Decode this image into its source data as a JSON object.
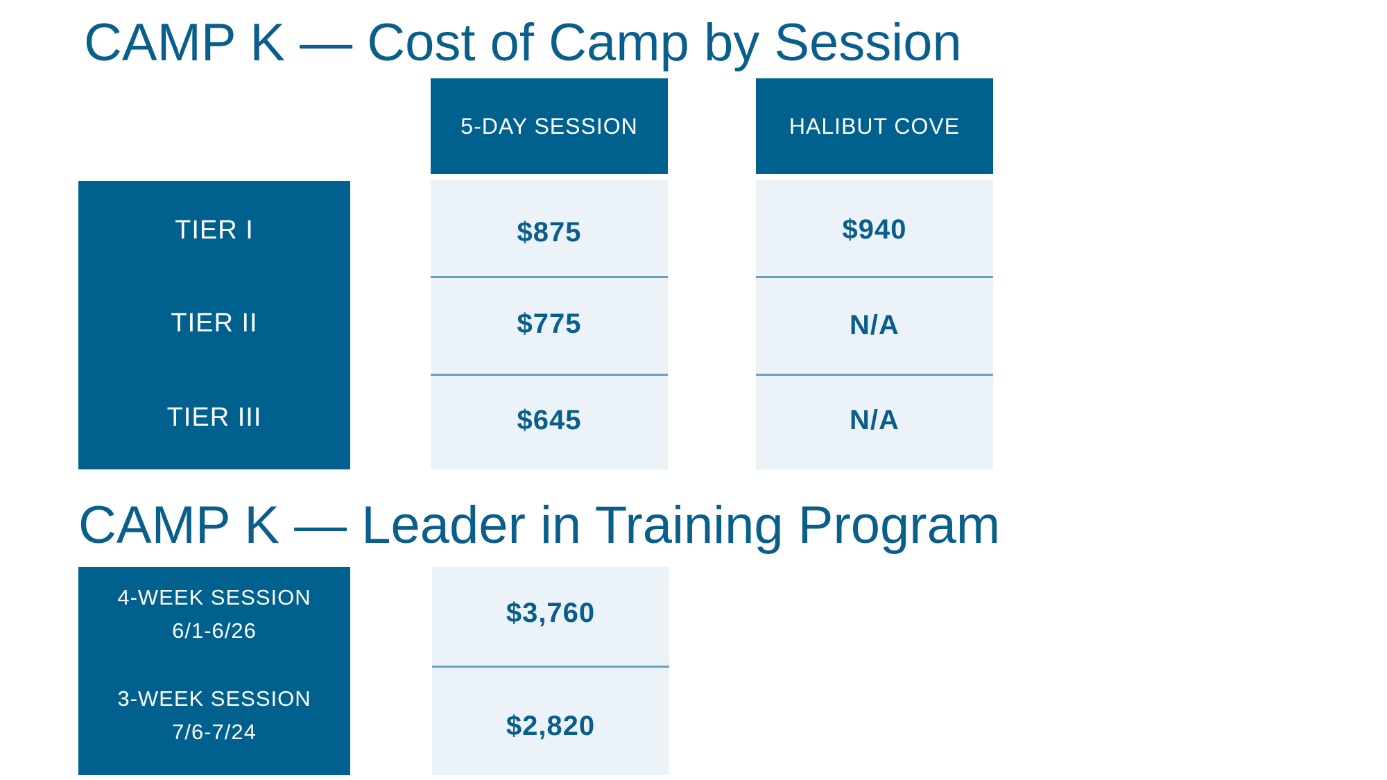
{
  "section_cost": {
    "title": "CAMP K — Cost of Camp by Session",
    "columns": [
      "5-DAY SESSION",
      "HALIBUT COVE"
    ],
    "rows": [
      {
        "label": "TIER I",
        "values": [
          "$875",
          "$940"
        ]
      },
      {
        "label": "TIER II",
        "values": [
          "$775",
          "N/A"
        ]
      },
      {
        "label": "TIER III",
        "values": [
          "$645",
          "N/A"
        ]
      }
    ]
  },
  "section_lit": {
    "title": "CAMP K — Leader in Training Program",
    "rows": [
      {
        "label_line1": "4-WEEK SESSION",
        "label_line2": "6/1-6/26",
        "value": "$3,760"
      },
      {
        "label_line1": "3-WEEK SESSION",
        "label_line2": "7/6-7/24",
        "value": "$2,820"
      }
    ]
  },
  "colors": {
    "header_bg": "#00608e",
    "cell_bg": "#ecf3f8",
    "text_blue": "#0a5e8c",
    "divider": "#6a9fbe"
  }
}
